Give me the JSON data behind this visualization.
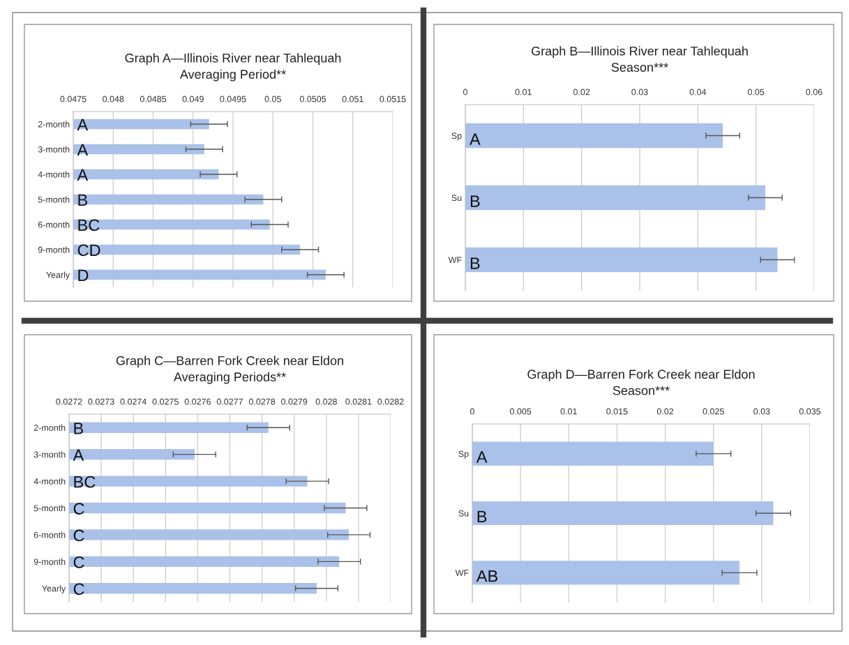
{
  "chart_data": [
    {
      "type": "bar",
      "orientation": "horizontal",
      "title": "Graph A—Illinois River near Tahlequah\nAveraging Period**",
      "categories": [
        "2-month",
        "3-month",
        "4-month",
        "5-month",
        "6-month",
        "9-month",
        "Yearly"
      ],
      "values": [
        0.0492,
        0.04914,
        0.04932,
        0.04988,
        0.04996,
        0.05034,
        0.05066
      ],
      "errors": [
        0.00023,
        0.00023,
        0.00023,
        0.00023,
        0.00023,
        0.00023,
        0.00023
      ],
      "color": "#aac1e9",
      "xlim": [
        0.0475,
        0.0515
      ],
      "xticks": [
        0.0475,
        0.048,
        0.0485,
        0.049,
        0.0495,
        0.05,
        0.0505,
        0.051,
        0.0515
      ],
      "grid": "x",
      "value_labels": [
        "A",
        "A",
        "A",
        "B",
        "BC",
        "CD",
        "D"
      ]
    },
    {
      "type": "bar",
      "orientation": "horizontal",
      "title": "Graph B—Illinois River near Tahlequah\nSeason***",
      "categories": [
        "Sp",
        "Su",
        "WF"
      ],
      "values": [
        0.0443,
        0.0516,
        0.0537
      ],
      "errors": [
        0.0029,
        0.0029,
        0.0029
      ],
      "color": "#aac1e9",
      "xlim": [
        0,
        0.06
      ],
      "xticks": [
        0,
        0.01,
        0.02,
        0.03,
        0.04,
        0.05,
        0.06
      ],
      "grid": "x",
      "value_labels": [
        "A",
        "B",
        "B"
      ]
    },
    {
      "type": "bar",
      "orientation": "horizontal",
      "title": "Graph C—Barren Fork Creek near Eldon\nAveraging Periods**",
      "categories": [
        "2-month",
        "3-month",
        "4-month",
        "5-month",
        "6-month",
        "9-month",
        "Yearly"
      ],
      "values": [
        0.02782,
        0.02759,
        0.027941,
        0.02806,
        0.02807,
        0.02804,
        0.02797
      ],
      "errors": [
        6.6e-05,
        6.6e-05,
        6.6e-05,
        6.6e-05,
        6.6e-05,
        6.6e-05,
        6.6e-05
      ],
      "color": "#aac1e9",
      "xlim": [
        0.0272,
        0.0282
      ],
      "xticks": [
        0.0272,
        0.0273,
        0.0274,
        0.0275,
        0.0276,
        0.0277,
        0.0278,
        0.0279,
        0.028,
        0.0281,
        0.0282
      ],
      "grid": "x",
      "value_labels": [
        "B",
        "A",
        "BC",
        "C",
        "C",
        "C",
        "C"
      ]
    },
    {
      "type": "bar",
      "orientation": "horizontal",
      "title": "Graph D—Barren Fork Creek near Eldon\nSeason***",
      "categories": [
        "Sp",
        "Su",
        "WF"
      ],
      "values": [
        0.025,
        0.0312,
        0.0277
      ],
      "errors": [
        0.0018,
        0.0018,
        0.0018
      ],
      "color": "#aac1e9",
      "xlim": [
        0,
        0.035
      ],
      "xticks": [
        0,
        0.005,
        0.01,
        0.015,
        0.02,
        0.025,
        0.03,
        0.035
      ],
      "grid": "x",
      "value_labels": [
        "A",
        "B",
        "AB"
      ]
    }
  ]
}
